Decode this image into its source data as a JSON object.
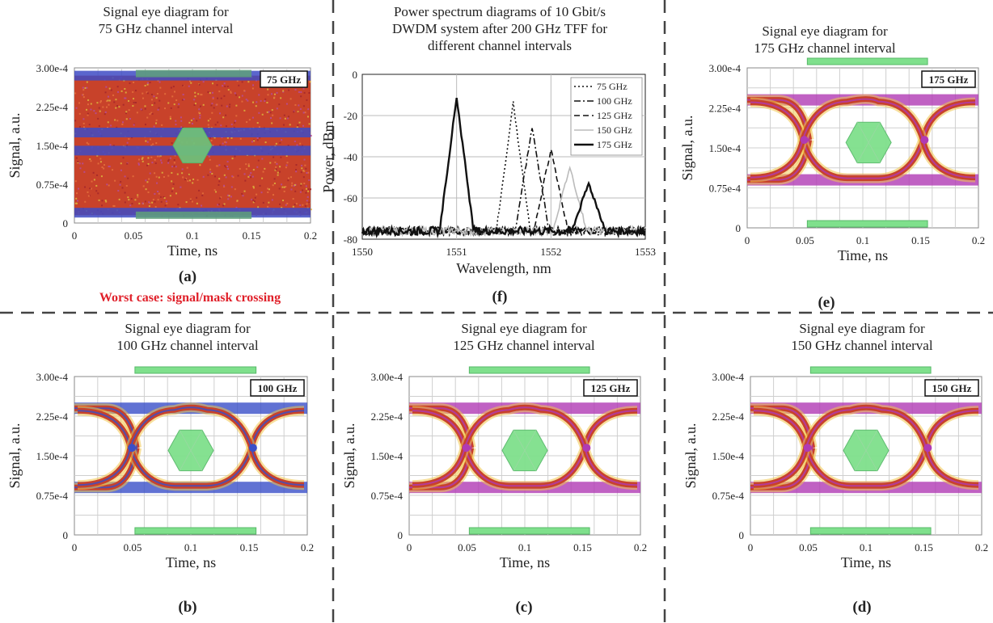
{
  "figure": {
    "worst_case_note": "Worst case: signal/mask crossing"
  },
  "chart_data": [
    {
      "id": "a",
      "type": "eye-diagram",
      "panel_label": "(a)",
      "title_lines": [
        "Signal eye diagram for",
        "75 GHz channel interval"
      ],
      "badge": "75 GHz",
      "xlabel": "Time, ns",
      "ylabel": "Signal, a.u.",
      "xticks": [
        "0",
        "0.05",
        "0.1",
        "0.15",
        "0.2"
      ],
      "yticks": [
        "0",
        "0.75e-4",
        "1.50e-4",
        "2.25e-4",
        "3.00e-4"
      ],
      "xlim": [
        0,
        0.2
      ],
      "ylim": [
        0,
        0.0003
      ],
      "closed_eye": true,
      "mask": {
        "center_time": 0.1,
        "center_level": 0.00015
      },
      "colors": {
        "trace": "#c8422a",
        "rail": "#3e4bc4",
        "mask": "#7fe08c"
      }
    },
    {
      "id": "f",
      "type": "line",
      "panel_label": "(f)",
      "title_lines": [
        "Power spectrum diagrams of 10 Gbit/s",
        "DWDM system after 200 GHz TFF for",
        "different channel intervals"
      ],
      "xlabel": "Wavelength, nm",
      "ylabel": "Power, dBm",
      "xticks": [
        "1550",
        "1551",
        "1552",
        "1553"
      ],
      "yticks": [
        "-80",
        "-60",
        "-40",
        "-20",
        "0"
      ],
      "xlim": [
        1550,
        1553
      ],
      "ylim": [
        -80,
        0
      ],
      "legend_position": "top-right",
      "series": [
        {
          "name": "75 GHz",
          "dash": "dotted",
          "color": "#111111",
          "peak_nm": 1551.6,
          "peak_dbm": -14
        },
        {
          "name": "100 GHz",
          "dash": "dashdot",
          "color": "#111111",
          "peak_nm": 1551.8,
          "peak_dbm": -26
        },
        {
          "name": "125 GHz",
          "dash": "dashed",
          "color": "#111111",
          "peak_nm": 1552.0,
          "peak_dbm": -36
        },
        {
          "name": "150 GHz",
          "dash": "solid",
          "color": "#bbbbbb",
          "peak_nm": 1552.2,
          "peak_dbm": -45
        },
        {
          "name": "175 GHz",
          "dash": "solid-thick",
          "color": "#111111",
          "peak_nm": 1552.4,
          "peak_dbm": -53
        }
      ],
      "common_peak": {
        "nm": 1551.0,
        "dbm": -11
      },
      "noise_floor_dbm": -76
    },
    {
      "id": "e",
      "type": "eye-diagram",
      "panel_label": "(e)",
      "title_lines": [
        "Signal eye diagram for",
        "175 GHz channel interval"
      ],
      "badge": "175 GHz",
      "xlabel": "Time, ns",
      "ylabel": "Signal, a.u.",
      "xticks": [
        "0",
        "0.05",
        "0.1",
        "0.15",
        "0.2"
      ],
      "yticks": [
        "0",
        "0.75e-4",
        "1.50e-4",
        "2.25e-4",
        "3.00e-4"
      ],
      "xlim": [
        0,
        0.2
      ],
      "ylim": [
        0,
        0.0003
      ],
      "closed_eye": false,
      "mask": {
        "center_time": 0.105,
        "center_level": 0.00016
      },
      "colors": {
        "trace": "#c8422a",
        "rail": "#b03ab4",
        "mask": "#7fe08c"
      }
    },
    {
      "id": "b",
      "type": "eye-diagram",
      "panel_label": "(b)",
      "title_lines": [
        "Signal eye diagram for",
        "100 GHz channel interval"
      ],
      "badge": "100 GHz",
      "xlabel": "Time, ns",
      "ylabel": "Signal, a.u.",
      "xticks": [
        "0",
        "0.05",
        "0.1",
        "0.15",
        "0.2"
      ],
      "yticks": [
        "0",
        "0.75e-4",
        "1.50e-4",
        "2.25e-4",
        "3.00e-4"
      ],
      "xlim": [
        0,
        0.2
      ],
      "ylim": [
        0,
        0.0003
      ],
      "closed_eye": false,
      "mask": {
        "center_time": 0.1,
        "center_level": 0.00016
      },
      "colors": {
        "trace": "#c8422a",
        "rail": "#3a4fc8",
        "mask": "#7fe08c"
      }
    },
    {
      "id": "c",
      "type": "eye-diagram",
      "panel_label": "(c)",
      "title_lines": [
        "Signal eye diagram for",
        "125 GHz channel interval"
      ],
      "badge": "125 GHz",
      "xlabel": "Time, ns",
      "ylabel": "Signal, a.u.",
      "xticks": [
        "0",
        "0.05",
        "0.1",
        "0.15",
        "0.2"
      ],
      "yticks": [
        "0",
        "0.75e-4",
        "1.50e-4",
        "2.25e-4",
        "3.00e-4"
      ],
      "xlim": [
        0,
        0.2
      ],
      "ylim": [
        0,
        0.0003
      ],
      "closed_eye": false,
      "mask": {
        "center_time": 0.1,
        "center_level": 0.00016
      },
      "colors": {
        "trace": "#c8422a",
        "rail": "#b03ab4",
        "mask": "#7fe08c"
      }
    },
    {
      "id": "d",
      "type": "eye-diagram",
      "panel_label": "(d)",
      "title_lines": [
        "Signal eye diagram for",
        "150 GHz channel interval"
      ],
      "badge": "150 GHz",
      "xlabel": "Time, ns",
      "ylabel": "Signal, a.u.",
      "xticks": [
        "0",
        "0.05",
        "0.1",
        "0.15",
        "0.2"
      ],
      "yticks": [
        "0",
        "0.75e-4",
        "1.50e-4",
        "2.25e-4",
        "3.00e-4"
      ],
      "xlim": [
        0,
        0.2
      ],
      "ylim": [
        0,
        0.0003
      ],
      "closed_eye": false,
      "mask": {
        "center_time": 0.1,
        "center_level": 0.00016
      },
      "colors": {
        "trace": "#c8422a",
        "rail": "#b03ab4",
        "mask": "#7fe08c"
      }
    }
  ]
}
